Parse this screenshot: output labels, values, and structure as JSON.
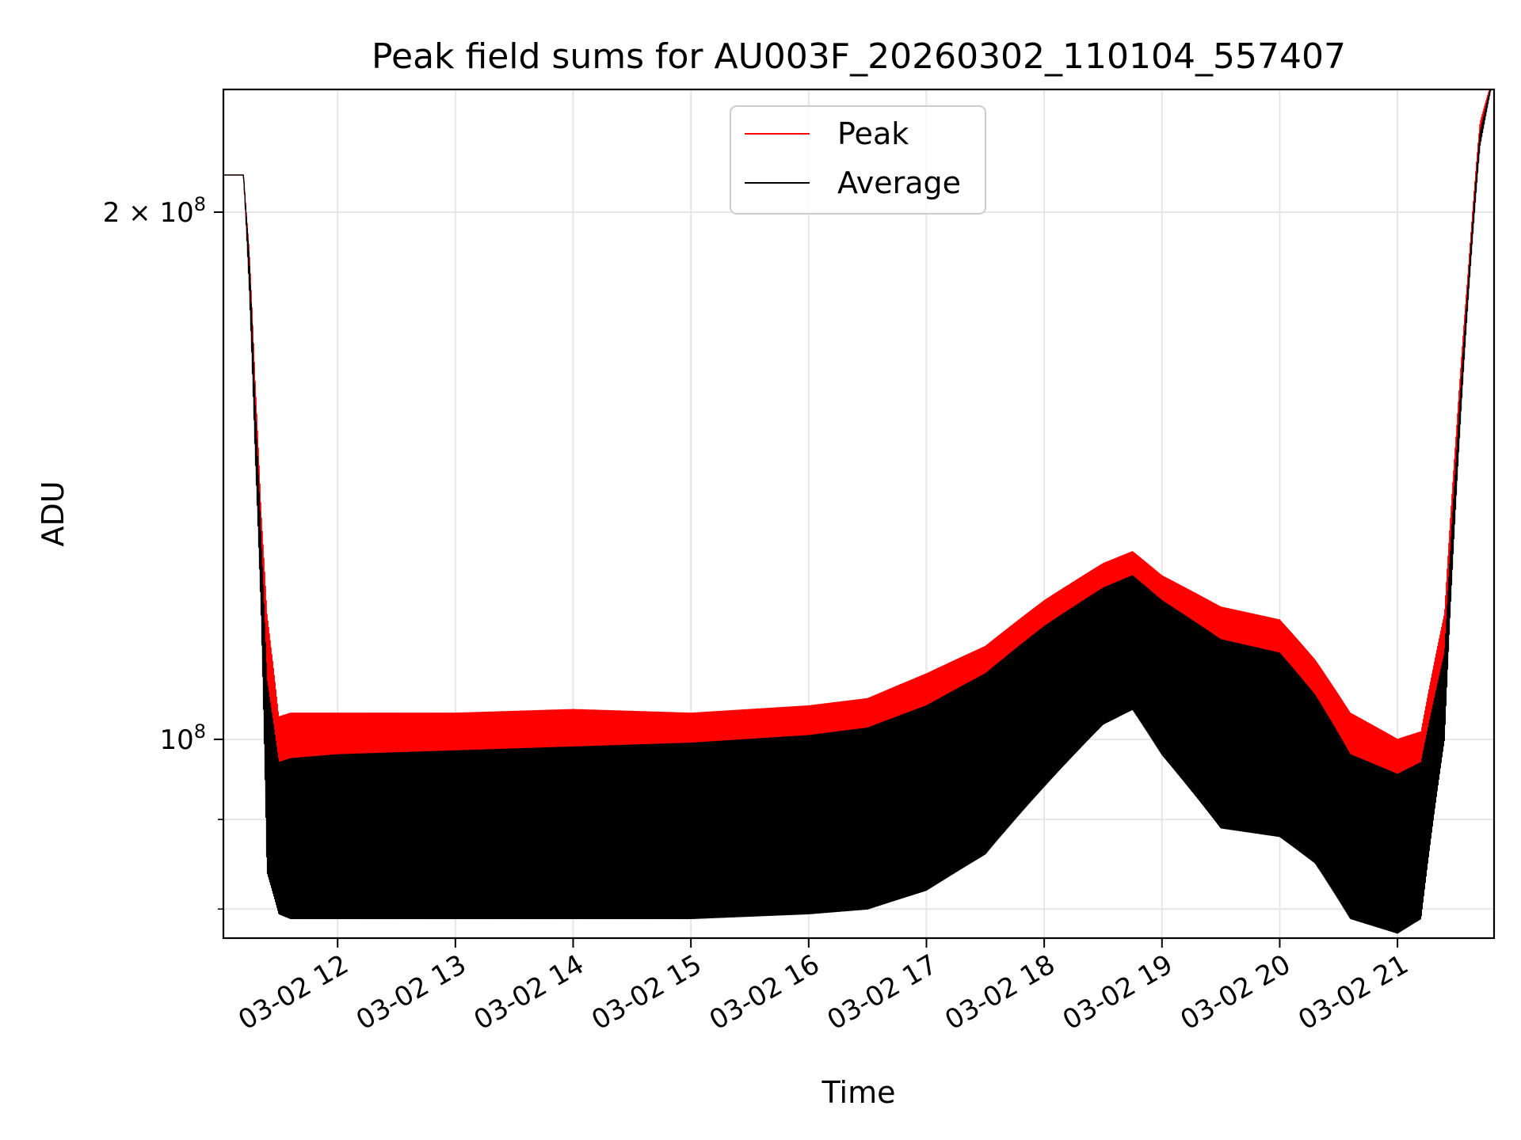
{
  "chart_data": {
    "type": "line",
    "title": "Peak field sums for AU003F_20260302_110104_557407",
    "xlabel": "Time",
    "ylabel": "ADU",
    "yscale": "log",
    "ylim": [
      77000000,
      235000000
    ],
    "xlim": [
      11.03,
      21.82
    ],
    "grid": true,
    "legend_position": "top-center",
    "x_ticks": [
      {
        "value": 12,
        "label": "03-02 12"
      },
      {
        "value": 13,
        "label": "03-02 13"
      },
      {
        "value": 14,
        "label": "03-02 14"
      },
      {
        "value": 15,
        "label": "03-02 15"
      },
      {
        "value": 16,
        "label": "03-02 16"
      },
      {
        "value": 17,
        "label": "03-02 17"
      },
      {
        "value": 18,
        "label": "03-02 18"
      },
      {
        "value": 19,
        "label": "03-02 19"
      },
      {
        "value": 20,
        "label": "03-02 20"
      },
      {
        "value": 21,
        "label": "03-02 21"
      }
    ],
    "y_major_ticks": [
      {
        "value": 100000000,
        "mantissa": "",
        "base": "10",
        "exp": "8"
      },
      {
        "value": 200000000,
        "mantissa": "2 × ",
        "base": "10",
        "exp": "8"
      }
    ],
    "y_minor_ticks": [
      80000000,
      90000000
    ],
    "series": [
      {
        "name": "Peak",
        "color": "#ff0000",
        "x": [
          11.03,
          11.2,
          11.25,
          11.3,
          11.35,
          11.4,
          11.5,
          11.6,
          12.0,
          13.0,
          14.0,
          15.0,
          16.0,
          16.5,
          17.0,
          17.5,
          18.0,
          18.5,
          18.75,
          19.0,
          19.5,
          20.0,
          20.3,
          20.6,
          21.0,
          21.2,
          21.4,
          21.5,
          21.6,
          21.7,
          21.82
        ],
        "top": [
          210000000,
          210000000,
          190000000,
          160000000,
          135000000,
          118000000,
          103000000,
          103500000,
          103500000,
          103500000,
          104000000,
          103500000,
          104500000,
          105500000,
          109000000,
          113000000,
          120000000,
          126000000,
          128000000,
          124000000,
          119000000,
          117000000,
          111000000,
          103500000,
          100000000,
          101000000,
          118000000,
          150000000,
          185000000,
          225000000,
          240000000
        ],
        "bottom": [
          210000000,
          210000000,
          185000000,
          150000000,
          125000000,
          100000000,
          94000000,
          95000000,
          96000000,
          97000000,
          98000000,
          98500000,
          99500000,
          100500000,
          103000000,
          107000000,
          114000000,
          120000000,
          123000000,
          118000000,
          113000000,
          110000000,
          105000000,
          96000000,
          94000000,
          96000000,
          110000000,
          140000000,
          180000000,
          220000000,
          240000000
        ]
      },
      {
        "name": "Average",
        "color": "#000000",
        "x": [
          11.03,
          11.2,
          11.25,
          11.3,
          11.35,
          11.4,
          11.5,
          11.6,
          12.0,
          13.0,
          14.0,
          15.0,
          16.0,
          16.5,
          17.0,
          17.5,
          18.0,
          18.5,
          18.75,
          19.0,
          19.5,
          20.0,
          20.3,
          20.6,
          21.0,
          21.2,
          21.4,
          21.5,
          21.6,
          21.7,
          21.82
        ],
        "top": [
          210000000,
          210000000,
          188000000,
          155000000,
          130000000,
          108000000,
          97000000,
          97500000,
          98000000,
          98500000,
          99000000,
          99500000,
          100500000,
          101500000,
          104500000,
          109000000,
          116000000,
          122000000,
          124000000,
          120000000,
          114000000,
          112000000,
          106000000,
          98000000,
          95500000,
          97000000,
          112000000,
          145000000,
          182000000,
          222000000,
          240000000
        ],
        "bottom": [
          210000000,
          210000000,
          180000000,
          145000000,
          118000000,
          84000000,
          79500000,
          79000000,
          79000000,
          79000000,
          79000000,
          79000000,
          79500000,
          80000000,
          82000000,
          86000000,
          94000000,
          102000000,
          104000000,
          98000000,
          89000000,
          88000000,
          85000000,
          79000000,
          77500000,
          79000000,
          100000000,
          138000000,
          178000000,
          218000000,
          240000000
        ]
      }
    ]
  }
}
